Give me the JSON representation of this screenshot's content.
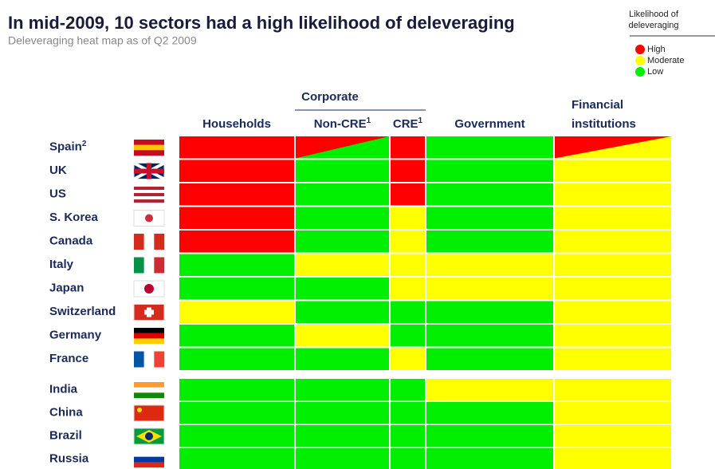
{
  "title": "In mid-2009, 10 sectors had a high likelihood of deleveraging",
  "subtitle": "Deleveraging heat map as of Q2 2009",
  "legend": {
    "title": "Likelihood of deleveraging",
    "items": [
      {
        "name": "High",
        "color": "#ff0000"
      },
      {
        "name": "Moderate",
        "color": "#ffff00"
      },
      {
        "name": "Low",
        "color": "#00ee00"
      }
    ]
  },
  "group_header": "Corporate",
  "columns": [
    {
      "name": "Households"
    },
    {
      "name": "Non-CRE",
      "note": "1"
    },
    {
      "name": "CRE",
      "note": "1"
    },
    {
      "name": "Government"
    },
    {
      "name": "Financial institutions"
    }
  ],
  "rows": [
    {
      "name": "Spain",
      "note": "2",
      "cells": [
        "High",
        [
          "High",
          "Low"
        ],
        "High",
        "Low",
        [
          "High",
          "Moderate"
        ]
      ]
    },
    {
      "name": "UK",
      "cells": [
        "High",
        "Low",
        "High",
        "Low",
        "Moderate"
      ]
    },
    {
      "name": "US",
      "cells": [
        "High",
        "Low",
        "High",
        "Low",
        "Moderate"
      ]
    },
    {
      "name": "S. Korea",
      "cells": [
        "High",
        "Low",
        "Moderate",
        "Low",
        "Moderate"
      ]
    },
    {
      "name": "Canada",
      "cells": [
        "High",
        "Low",
        "Moderate",
        "Low",
        "Moderate"
      ]
    },
    {
      "name": "Italy",
      "cells": [
        "Low",
        "Moderate",
        "Moderate",
        "Moderate",
        "Moderate"
      ]
    },
    {
      "name": "Japan",
      "cells": [
        "Low",
        "Low",
        "Moderate",
        "Moderate",
        "Moderate"
      ]
    },
    {
      "name": "Switzerland",
      "cells": [
        "Moderate",
        "Low",
        "Low",
        "Low",
        "Moderate"
      ]
    },
    {
      "name": "Germany",
      "cells": [
        "Low",
        "Moderate",
        "Low",
        "Low",
        "Moderate"
      ]
    },
    {
      "name": "France",
      "cells": [
        "Low",
        "Low",
        "Moderate",
        "Low",
        "Moderate"
      ]
    },
    {
      "name": "India",
      "cells": [
        "Low",
        "Low",
        "Low",
        "Moderate",
        "Moderate"
      ]
    },
    {
      "name": "China",
      "cells": [
        "Low",
        "Low",
        "Low",
        "Low",
        "Moderate"
      ]
    },
    {
      "name": "Brazil",
      "cells": [
        "Low",
        "Low",
        "Low",
        "Low",
        "Moderate"
      ]
    },
    {
      "name": "Russia",
      "cells": [
        "Low",
        "Low",
        "Low",
        "Low",
        "Moderate"
      ]
    }
  ]
}
